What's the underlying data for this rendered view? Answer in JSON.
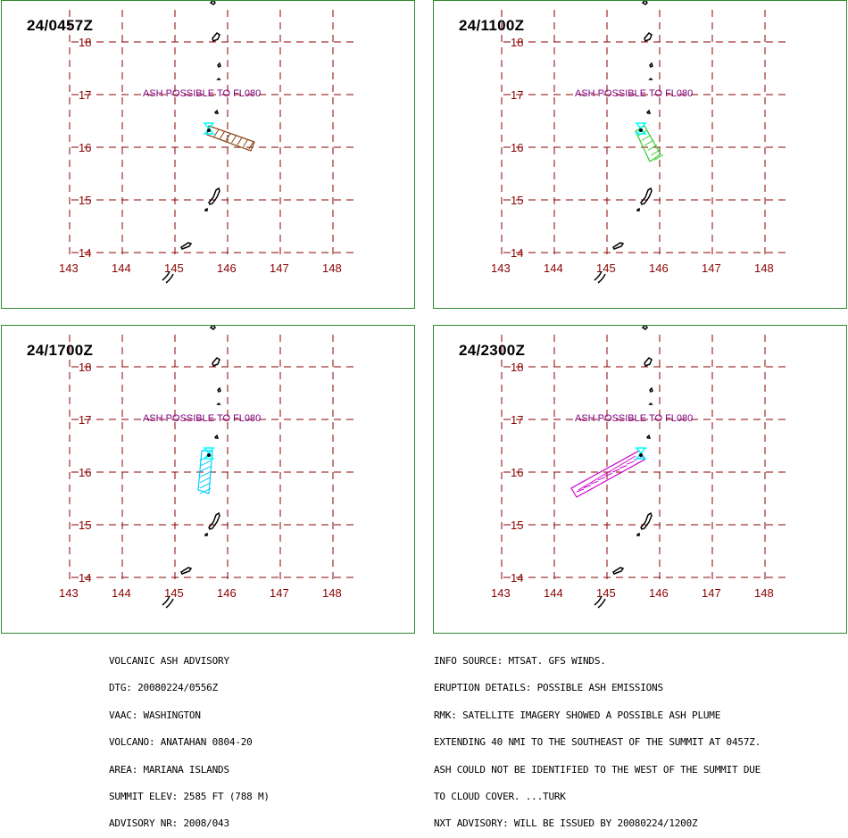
{
  "panels": [
    {
      "time": "24/0457Z",
      "ash_label": "ASH POSSIBLE TO FL080",
      "plume_color": "#8b4513"
    },
    {
      "time": "24/1100Z",
      "ash_label": "ASH POSSIBLE TO FL080",
      "plume_color": "#33cc33"
    },
    {
      "time": "24/1700Z",
      "ash_label": "ASH POSSIBLE TO FL080",
      "plume_color": "#00ccff"
    },
    {
      "time": "24/2300Z",
      "ash_label": "ASH POSSIBLE TO FL080",
      "plume_color": "#cc00cc"
    }
  ],
  "grid": {
    "lat_labels": [
      "18",
      "17",
      "16",
      "15",
      "14"
    ],
    "lon_labels": [
      "143",
      "144",
      "145",
      "146",
      "147",
      "148"
    ]
  },
  "advisory_left": [
    "VOLCANIC ASH ADVISORY",
    "DTG: 20080224/0556Z",
    "VAAC: WASHINGTON",
    "VOLCANO: ANATAHAN 0804-20",
    "AREA: MARIANA ISLANDS",
    "SUMMIT ELEV: 2585 FT (788 M)",
    "ADVISORY NR: 2008/043"
  ],
  "advisory_right": [
    "INFO SOURCE: MTSAT. GFS WINDS.",
    "ERUPTION DETAILS: POSSIBLE ASH EMISSIONS",
    "RMK: SATELLITE IMAGERY SHOWED A POSSIBLE ASH PLUME",
    "EXTENDING 40 NMI TO THE SOUTHEAST OF THE SUMMIT AT 0457Z.",
    "ASH COULD NOT BE IDENTIFIED TO THE WEST OF THE SUMMIT DUE",
    "TO CLOUD COVER. ...TURK",
    "NXT ADVISORY: WILL BE ISSUED BY 20080224/1200Z"
  ],
  "colors": {
    "grid": "#8b0000",
    "border": "#2b8a2b",
    "volcano": "#00ffff",
    "ash_text": "#800080"
  }
}
